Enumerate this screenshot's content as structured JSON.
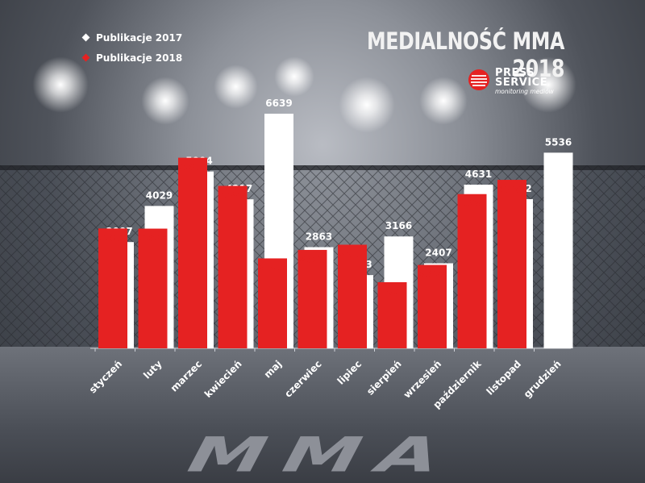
{
  "title": "MEDIALNOŚĆ MMA 2018",
  "legend": [
    {
      "label": "Publikacje 2017",
      "color": "#ffffff"
    },
    {
      "label": "Publikacje 2018",
      "color": "#e52222"
    }
  ],
  "logo": {
    "line1": "PRESS",
    "line2": "SERVICE",
    "tagline": "monitoring mediów"
  },
  "background_text": "MMA",
  "chart_data": {
    "type": "bar",
    "title": "MEDIALNOŚĆ MMA 2018",
    "xlabel": "",
    "ylabel": "",
    "categories": [
      "styczeń",
      "luty",
      "marzec",
      "kwiecień",
      "maj",
      "czerwiec",
      "lipiec",
      "sierpień",
      "wrzesień",
      "październik",
      "listopad",
      "grudzień"
    ],
    "series": [
      {
        "name": "Publikacje 2017",
        "color": "#ffffff",
        "label_color": "#ffffff",
        "values": [
          3007,
          4029,
          5004,
          4217,
          6639,
          2863,
          2073,
          3166,
          2407,
          4631,
          4222,
          5536
        ]
      },
      {
        "name": "Publikacje 2018",
        "color": "#e52222",
        "label_color": "#e52222",
        "values": [
          3392,
          3387,
          5393,
          4597,
          2545,
          2785,
          2932,
          1871,
          2360,
          4364,
          4767,
          null
        ]
      }
    ],
    "ylim": [
      0,
      6639
    ],
    "grid": false,
    "legend_position": "top-left"
  }
}
